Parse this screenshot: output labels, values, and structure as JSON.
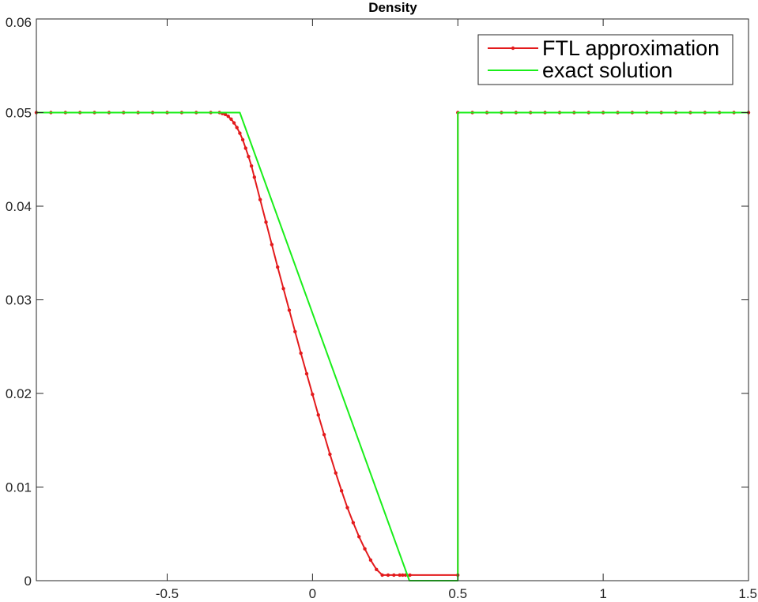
{
  "chart_data": {
    "type": "line",
    "title": "Density",
    "xlabel": "",
    "ylabel": "",
    "xlim": [
      -0.95,
      1.5
    ],
    "ylim": [
      0,
      0.06
    ],
    "x_ticks": [
      -0.5,
      0,
      0.5,
      1,
      1.5
    ],
    "x_tick_labels": [
      "-0.5",
      "0",
      "0.5",
      "1",
      "1.5"
    ],
    "y_ticks": [
      0,
      0.01,
      0.02,
      0.03,
      0.04,
      0.05,
      0.06
    ],
    "y_tick_labels": [
      "0",
      "0.01",
      "0.02",
      "0.03",
      "0.04",
      "0.05",
      "0.06"
    ],
    "grid": false,
    "legend_position": "top-right",
    "series": [
      {
        "name": "FTL approximation",
        "color": "#e31a1c",
        "marker": "dot",
        "x": [
          -0.95,
          -0.9,
          -0.85,
          -0.8,
          -0.75,
          -0.7,
          -0.65,
          -0.6,
          -0.55,
          -0.5,
          -0.45,
          -0.4,
          -0.35,
          -0.32,
          -0.31,
          -0.3,
          -0.29,
          -0.28,
          -0.27,
          -0.26,
          -0.25,
          -0.24,
          -0.23,
          -0.22,
          -0.21,
          -0.2,
          -0.18,
          -0.16,
          -0.14,
          -0.12,
          -0.1,
          -0.08,
          -0.06,
          -0.04,
          -0.02,
          0.0,
          0.02,
          0.04,
          0.06,
          0.08,
          0.1,
          0.12,
          0.14,
          0.16,
          0.18,
          0.2,
          0.22,
          0.24,
          0.26,
          0.28,
          0.3,
          0.31,
          0.32,
          0.335,
          0.5,
          0.5,
          0.55,
          0.6,
          0.65,
          0.7,
          0.75,
          0.8,
          0.85,
          0.9,
          0.95,
          1.0,
          1.05,
          1.1,
          1.15,
          1.2,
          1.25,
          1.3,
          1.35,
          1.4,
          1.45,
          1.5
        ],
        "y": [
          0.05,
          0.05,
          0.05,
          0.05,
          0.05,
          0.05,
          0.05,
          0.05,
          0.05,
          0.05,
          0.05,
          0.05,
          0.05,
          0.05,
          0.0499,
          0.0498,
          0.0496,
          0.0493,
          0.0489,
          0.0484,
          0.0478,
          0.0471,
          0.0462,
          0.0453,
          0.0443,
          0.0431,
          0.0407,
          0.0383,
          0.0359,
          0.0335,
          0.0312,
          0.0289,
          0.0266,
          0.0243,
          0.0221,
          0.0199,
          0.0177,
          0.0156,
          0.0135,
          0.0115,
          0.0096,
          0.0078,
          0.0062,
          0.0047,
          0.0034,
          0.0022,
          0.0012,
          0.0006,
          0.0006,
          0.0006,
          0.0006,
          0.0006,
          0.0006,
          0.0006,
          0.0006,
          0.05,
          0.05,
          0.05,
          0.05,
          0.05,
          0.05,
          0.05,
          0.05,
          0.05,
          0.05,
          0.05,
          0.05,
          0.05,
          0.05,
          0.05,
          0.05,
          0.05,
          0.05,
          0.05,
          0.05,
          0.05
        ]
      },
      {
        "name": "exact solution",
        "color": "#1aee1a",
        "marker": "none",
        "x": [
          -0.95,
          -0.25,
          0.3333,
          0.5,
          0.5,
          1.5
        ],
        "y": [
          0.05,
          0.05,
          0.0,
          0.0,
          0.05,
          0.05
        ]
      }
    ]
  }
}
